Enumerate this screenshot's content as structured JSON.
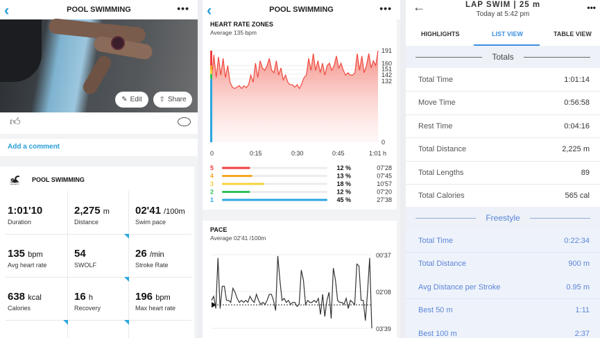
{
  "workout": {
    "title": "POOL SWIMMING",
    "edit": "Edit",
    "share": "Share",
    "add_comment": "Add a comment",
    "card_title": "POOL SWIMMING",
    "stats": [
      {
        "value": "1:01'10",
        "unit": "",
        "label": "Duration"
      },
      {
        "value": "2,275",
        "unit": "m",
        "label": "Distance"
      },
      {
        "value": "02'41",
        "unit": "/100m",
        "label": "Swim pace"
      },
      {
        "value": "135",
        "unit": "bpm",
        "label": "Avg heart rate"
      },
      {
        "value": "54",
        "unit": "",
        "label": "SWOLF"
      },
      {
        "value": "26",
        "unit": "/min",
        "label": "Stroke Rate"
      },
      {
        "value": "638",
        "unit": "kcal",
        "label": "Calories"
      },
      {
        "value": "16",
        "unit": "h",
        "label": "Recovery"
      },
      {
        "value": "196",
        "unit": "bpm",
        "label": "Max heart rate"
      }
    ],
    "accent": "#2a9fd8"
  },
  "analysis": {
    "title": "POOL SWIMMING",
    "hr": {
      "title": "HEART RATE ZONES",
      "subtitle": "Average 135 bpm"
    },
    "zones": [
      {
        "zone": "5",
        "pct": 12,
        "pct_label": "12 %",
        "time": "07'28",
        "color": "#f03c3c"
      },
      {
        "zone": "4",
        "pct": 13,
        "pct_label": "13 %",
        "time": "07'45",
        "color": "#f5a623"
      },
      {
        "zone": "3",
        "pct": 18,
        "pct_label": "18 %",
        "time": "10'57",
        "color": "#f7d23a"
      },
      {
        "zone": "2",
        "pct": 12,
        "pct_label": "12 %",
        "time": "07'20",
        "color": "#2fc15a"
      },
      {
        "zone": "1",
        "pct": 45,
        "pct_label": "45 %",
        "time": "27'38",
        "color": "#2aa6e0"
      }
    ],
    "pace": {
      "title": "PACE",
      "subtitle": "Average 02'41 /100m"
    }
  },
  "chart_data": [
    {
      "type": "area",
      "title": "HEART RATE ZONES",
      "subtitle": "Average 135 bpm",
      "xlim": [
        0,
        61
      ],
      "ylim": [
        0,
        191
      ],
      "x_ticks": [
        "0",
        "0:15",
        "0:30",
        "0:45",
        "1:01 h"
      ],
      "y_ticks": [
        "191",
        "160",
        "151",
        "142",
        "132",
        "0"
      ],
      "y_tick_values": [
        191,
        160,
        151,
        142,
        132,
        0
      ],
      "color": "#f04a3f",
      "values": [
        130,
        182,
        135,
        178,
        140,
        175,
        135,
        160,
        125,
        115,
        112,
        115,
        118,
        112,
        118,
        114,
        120,
        140,
        125,
        165,
        135,
        170,
        155,
        150,
        160,
        175,
        150,
        145,
        170,
        140,
        155,
        130,
        140,
        125,
        120,
        120,
        115,
        120,
        112,
        122,
        135,
        140,
        175,
        150,
        185,
        150,
        170,
        145,
        165,
        140,
        160,
        165,
        150,
        160,
        180,
        155,
        165,
        150,
        140,
        145,
        140,
        140,
        145,
        185,
        150,
        180,
        145,
        160,
        185,
        155,
        170,
        160,
        191
      ]
    },
    {
      "type": "line",
      "title": "PACE",
      "subtitle": "Average 02'41 /100m",
      "ylim": [
        "03'39",
        "00'37"
      ],
      "y_ticks": [
        "00'37",
        "02'08",
        "03'39"
      ],
      "average": "02'41",
      "color": "#333333",
      "values": [
        "02'30",
        "02'20",
        "02'50",
        "00'45",
        "02'50",
        "01'55",
        "01'55",
        "02'30",
        "02'30",
        "02'35",
        "02'00",
        "02'10",
        "02'25",
        "02'35",
        "02'30",
        "02'35",
        "02'30",
        "02'35",
        "02'20",
        "02'30",
        "02'35",
        "02'15",
        "02'30",
        "02'40",
        "02'35",
        "02'40",
        "02'30",
        "02'15",
        "02'15",
        "02'30",
        "02'55",
        "00'40",
        "01'40",
        "02'30",
        "02'25",
        "02'35",
        "02'30",
        "02'40",
        "02'35",
        "02'35",
        "02'45",
        "02'40",
        "01'15",
        "01'40",
        "02'40",
        "02'30",
        "02'35",
        "02'35",
        "02'30",
        "02'35",
        "02'25",
        "03'05",
        "02'15",
        "03'10",
        "02'30",
        "02'10",
        "03'15",
        "01'10",
        "01'40",
        "02'30",
        "02'35",
        "02'35",
        "02'40",
        "02'25",
        "02'50",
        "02'30",
        "02'35",
        "02'40",
        "01'00",
        "01'05",
        "02'30",
        "02'30",
        "03'20",
        "02'10",
        "00'45",
        "03'39"
      ]
    }
  ],
  "lap": {
    "title": "LAP SWIM | 25 m",
    "subtitle": "Today at 5:42 pm",
    "tabs": [
      "HIGHLIGHTS",
      "LIST VIEW",
      "TABLE VIEW"
    ],
    "totals_label": "Totals",
    "totals": [
      {
        "label": "Total Time",
        "value": "1:01:14"
      },
      {
        "label": "Move Time",
        "value": "0:56:58"
      },
      {
        "label": "Rest Time",
        "value": "0:04:16"
      },
      {
        "label": "Total Distance",
        "value": "2,225 m"
      },
      {
        "label": "Total Lengths",
        "value": "89"
      },
      {
        "label": "Total Calories",
        "value": "565 cal"
      }
    ],
    "freestyle_label": "Freestyle",
    "freestyle": [
      {
        "label": "Total Time",
        "value": "0:22:34"
      },
      {
        "label": "Total Distance",
        "value": "900 m"
      },
      {
        "label": "Avg Distance per Stroke",
        "value": "0.95 m"
      },
      {
        "label": "Best 50 m",
        "value": "1:11"
      },
      {
        "label": "Best 100 m",
        "value": "2:37"
      }
    ],
    "accent": "#3d8fe0"
  }
}
